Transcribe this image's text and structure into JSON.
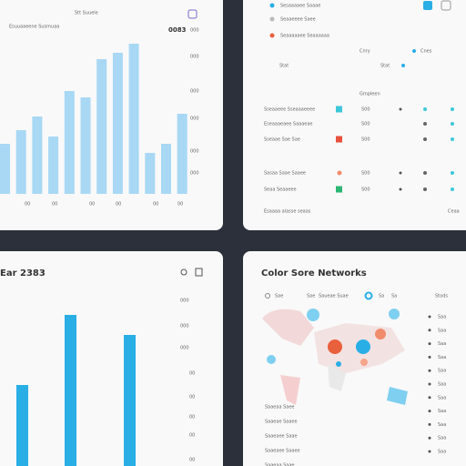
{
  "top_left": {
    "title": "Stt Suuele",
    "subtitle": "Esuuaaeene Susmuaa",
    "badge": "0083",
    "axis_labels": [
      "000",
      "000",
      "000",
      "000",
      "000",
      "000"
    ],
    "bottom_labels": [
      "00",
      "00",
      "00",
      "00",
      "00",
      "00"
    ],
    "bars": [
      55,
      70,
      85,
      63,
      113,
      106,
      148,
      155,
      165,
      45,
      55,
      88
    ]
  },
  "top_right": {
    "legend": [
      "Sesaaaaee Saaae",
      "Seaaeeee Saee",
      "Seaaaaaee Seaaaaaa"
    ],
    "filters": [
      "Cnry",
      "Cnes",
      "Stat",
      "Stat"
    ],
    "section": "Gmpleen",
    "rows": [
      {
        "label": "Sseaaeee Sseaaaeeee",
        "value": "S00"
      },
      {
        "label": "Eseaaaeaee Saaaeae",
        "value": "S00"
      },
      {
        "label": "Sseaae Sae Sae",
        "value": "S00"
      },
      {
        "label": "Sasaa Saae Saaee",
        "value": "S00"
      },
      {
        "label": "Seaa Seaaeee",
        "value": "S00"
      }
    ],
    "footer": "Esaaaa alasse seaas",
    "footer_right": "Ceaa"
  },
  "bottom_left": {
    "title": "Ear 2383",
    "axis_labels": [
      "000",
      "000",
      "000",
      "00",
      "00",
      "00",
      "00",
      "00"
    ],
    "bars": [
      89,
      166,
      144
    ]
  },
  "bottom_right": {
    "title": "Color Sore Networks",
    "tabs": [
      "Sae",
      "Sae",
      "Saueae Suae"
    ],
    "tab_counts": [
      "Sa",
      "Sa"
    ],
    "list_header": "Stods",
    "list": [
      "Saa",
      "Saa",
      "Saa",
      "Saa",
      "Saa",
      "Saa",
      "Saa",
      "Saa",
      "Saa",
      "Saa",
      "Saa"
    ],
    "notes": [
      "Saaeaa Saee",
      "Saaeae Saaee",
      "Saaeaee Saae",
      "Saaeaee Saaee",
      "Saaeaa Saae"
    ]
  }
}
